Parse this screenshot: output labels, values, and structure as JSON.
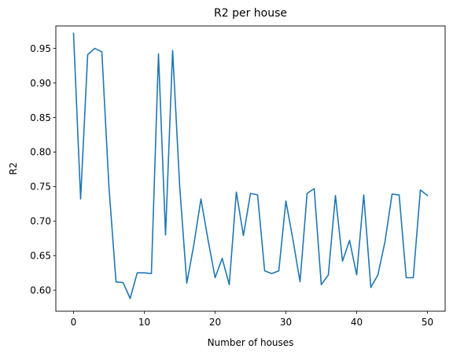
{
  "chart_data": {
    "type": "line",
    "title": "R2 per house",
    "xlabel": "Number of houses",
    "ylabel": "R2",
    "xlim": [
      -2.5,
      52.5
    ],
    "ylim": [
      0.5695,
      0.9825
    ],
    "xticks": [
      0,
      10,
      20,
      30,
      40,
      50
    ],
    "xtick_labels": [
      "0",
      "10",
      "20",
      "30",
      "40",
      "50"
    ],
    "yticks": [
      0.6,
      0.65,
      0.7,
      0.75,
      0.8,
      0.85,
      0.9,
      0.95
    ],
    "ytick_labels": [
      "0.60",
      "0.65",
      "0.70",
      "0.75",
      "0.80",
      "0.85",
      "0.90",
      "0.95"
    ],
    "grid": false,
    "series": [
      {
        "name": "R2",
        "color": "#1f77b4",
        "x": [
          0,
          1,
          2,
          3,
          4,
          5,
          6,
          7,
          8,
          9,
          10,
          11,
          12,
          13,
          14,
          15,
          16,
          17,
          18,
          19,
          20,
          21,
          22,
          23,
          24,
          25,
          26,
          27,
          28,
          29,
          30,
          31,
          32,
          33,
          34,
          35,
          36,
          37,
          38,
          39,
          40,
          41,
          42,
          43,
          44,
          45,
          46,
          47,
          48,
          49,
          50
        ],
        "y": [
          0.972,
          0.732,
          0.941,
          0.95,
          0.945,
          0.75,
          0.612,
          0.611,
          0.588,
          0.625,
          0.625,
          0.624,
          0.942,
          0.68,
          0.947,
          0.75,
          0.61,
          0.666,
          0.732,
          0.673,
          0.618,
          0.646,
          0.608,
          0.742,
          0.679,
          0.74,
          0.738,
          0.628,
          0.624,
          0.628,
          0.729,
          0.673,
          0.612,
          0.74,
          0.747,
          0.608,
          0.622,
          0.737,
          0.642,
          0.672,
          0.622,
          0.738,
          0.604,
          0.622,
          0.67,
          0.739,
          0.738,
          0.618,
          0.618,
          0.745,
          0.737
        ]
      }
    ]
  }
}
